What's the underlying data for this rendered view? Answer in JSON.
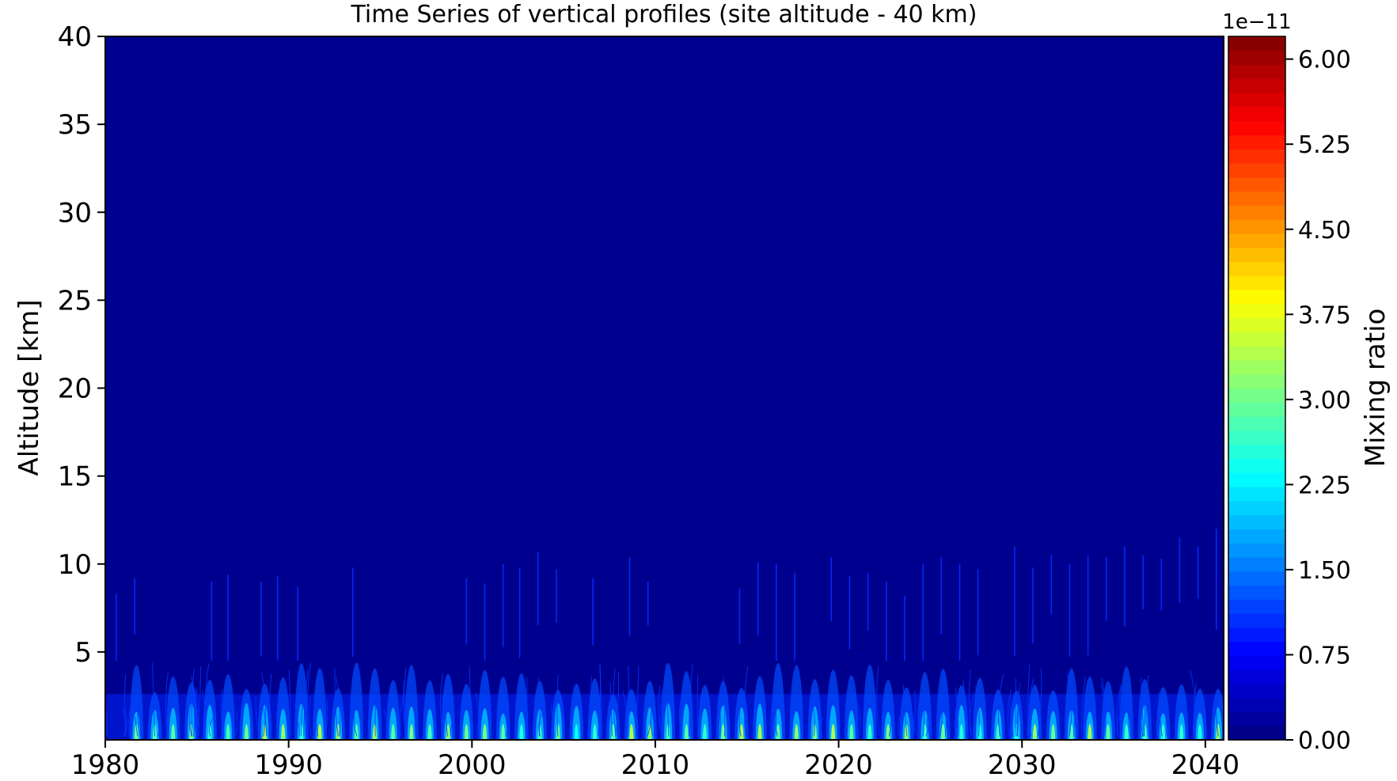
{
  "chart_data": {
    "type": "heatmap",
    "title": "Time Series of vertical profiles (site altitude - 40 km)",
    "ylabel": "Altitude [km]",
    "xlabel": "",
    "xlim": [
      1980,
      2041
    ],
    "ylim": [
      0.1,
      40
    ],
    "x_ticks": [
      1980,
      1990,
      2000,
      2010,
      2020,
      2030,
      2040
    ],
    "y_ticks": [
      5,
      10,
      15,
      20,
      25,
      30,
      35,
      40
    ],
    "colorbar": {
      "label": "Mixing ratio",
      "offset_text": "1e−11",
      "scale": 1e-11,
      "range": [
        0.0,
        6.2
      ],
      "ticks": [
        "0.00",
        "0.75",
        "1.50",
        "2.25",
        "3.00",
        "3.75",
        "4.50",
        "5.25",
        "6.00"
      ],
      "tick_values": [
        0.0,
        0.75,
        1.5,
        2.25,
        3.0,
        3.75,
        4.5,
        5.25,
        6.0
      ],
      "levels": 51,
      "colormap": "jet"
    },
    "background_value": 0.0,
    "pattern": {
      "description": "Yearly surface maxima near 0.3 km reaching about 2.5-3.75 (x1e-11); weak enhancements up to ~4 km with sporadic thin filaments extending to 9-12 km; zero above.",
      "surface_peak_years": [
        1981,
        1982,
        1983,
        1984,
        1985,
        1986,
        1987,
        1988,
        1989,
        1990,
        1991,
        1992,
        1993,
        1994,
        1995,
        1996,
        1997,
        1998,
        1999,
        2000,
        2001,
        2002,
        2003,
        2004,
        2005,
        2006,
        2007,
        2008,
        2009,
        2010,
        2011,
        2012,
        2013,
        2014,
        2015,
        2016,
        2017,
        2018,
        2019,
        2020,
        2021,
        2022,
        2023,
        2024,
        2025,
        2026,
        2027,
        2028,
        2029,
        2030,
        2031,
        2032,
        2033,
        2034,
        2035,
        2036,
        2037,
        2038,
        2039,
        2040
      ],
      "peak_value_approx": 3.0,
      "filaments": [
        {
          "x": 1980.6,
          "top": 8.3
        },
        {
          "x": 1981.6,
          "top": 9.2
        },
        {
          "x": 1985.8,
          "top": 9.0
        },
        {
          "x": 1986.7,
          "top": 9.4
        },
        {
          "x": 1988.5,
          "top": 9.0
        },
        {
          "x": 1989.4,
          "top": 9.3
        },
        {
          "x": 1990.5,
          "top": 8.7
        },
        {
          "x": 1993.5,
          "top": 9.8
        },
        {
          "x": 1999.7,
          "top": 9.2
        },
        {
          "x": 2000.7,
          "top": 8.9
        },
        {
          "x": 2001.7,
          "top": 10.0
        },
        {
          "x": 2002.6,
          "top": 9.8
        },
        {
          "x": 2003.6,
          "top": 10.7
        },
        {
          "x": 2004.6,
          "top": 9.7
        },
        {
          "x": 2006.6,
          "top": 9.2
        },
        {
          "x": 2008.6,
          "top": 10.4
        },
        {
          "x": 2009.6,
          "top": 9.0
        },
        {
          "x": 2014.6,
          "top": 8.6
        },
        {
          "x": 2015.6,
          "top": 10.1
        },
        {
          "x": 2016.6,
          "top": 10.0
        },
        {
          "x": 2017.6,
          "top": 9.5
        },
        {
          "x": 2019.6,
          "top": 10.4
        },
        {
          "x": 2020.6,
          "top": 9.3
        },
        {
          "x": 2021.6,
          "top": 9.5
        },
        {
          "x": 2022.6,
          "top": 9.0
        },
        {
          "x": 2023.6,
          "top": 8.2
        },
        {
          "x": 2024.6,
          "top": 10.0
        },
        {
          "x": 2025.6,
          "top": 10.4
        },
        {
          "x": 2026.6,
          "top": 10.0
        },
        {
          "x": 2027.6,
          "top": 9.7
        },
        {
          "x": 2029.6,
          "top": 11.0
        },
        {
          "x": 2030.6,
          "top": 9.8
        },
        {
          "x": 2031.6,
          "top": 10.5
        },
        {
          "x": 2032.6,
          "top": 10.0
        },
        {
          "x": 2033.6,
          "top": 10.5
        },
        {
          "x": 2034.6,
          "top": 10.4
        },
        {
          "x": 2035.6,
          "top": 11.0
        },
        {
          "x": 2036.6,
          "top": 10.5
        },
        {
          "x": 2037.6,
          "top": 10.3
        },
        {
          "x": 2038.6,
          "top": 11.5
        },
        {
          "x": 2039.6,
          "top": 11.0
        },
        {
          "x": 2040.6,
          "top": 12.0
        }
      ]
    }
  }
}
